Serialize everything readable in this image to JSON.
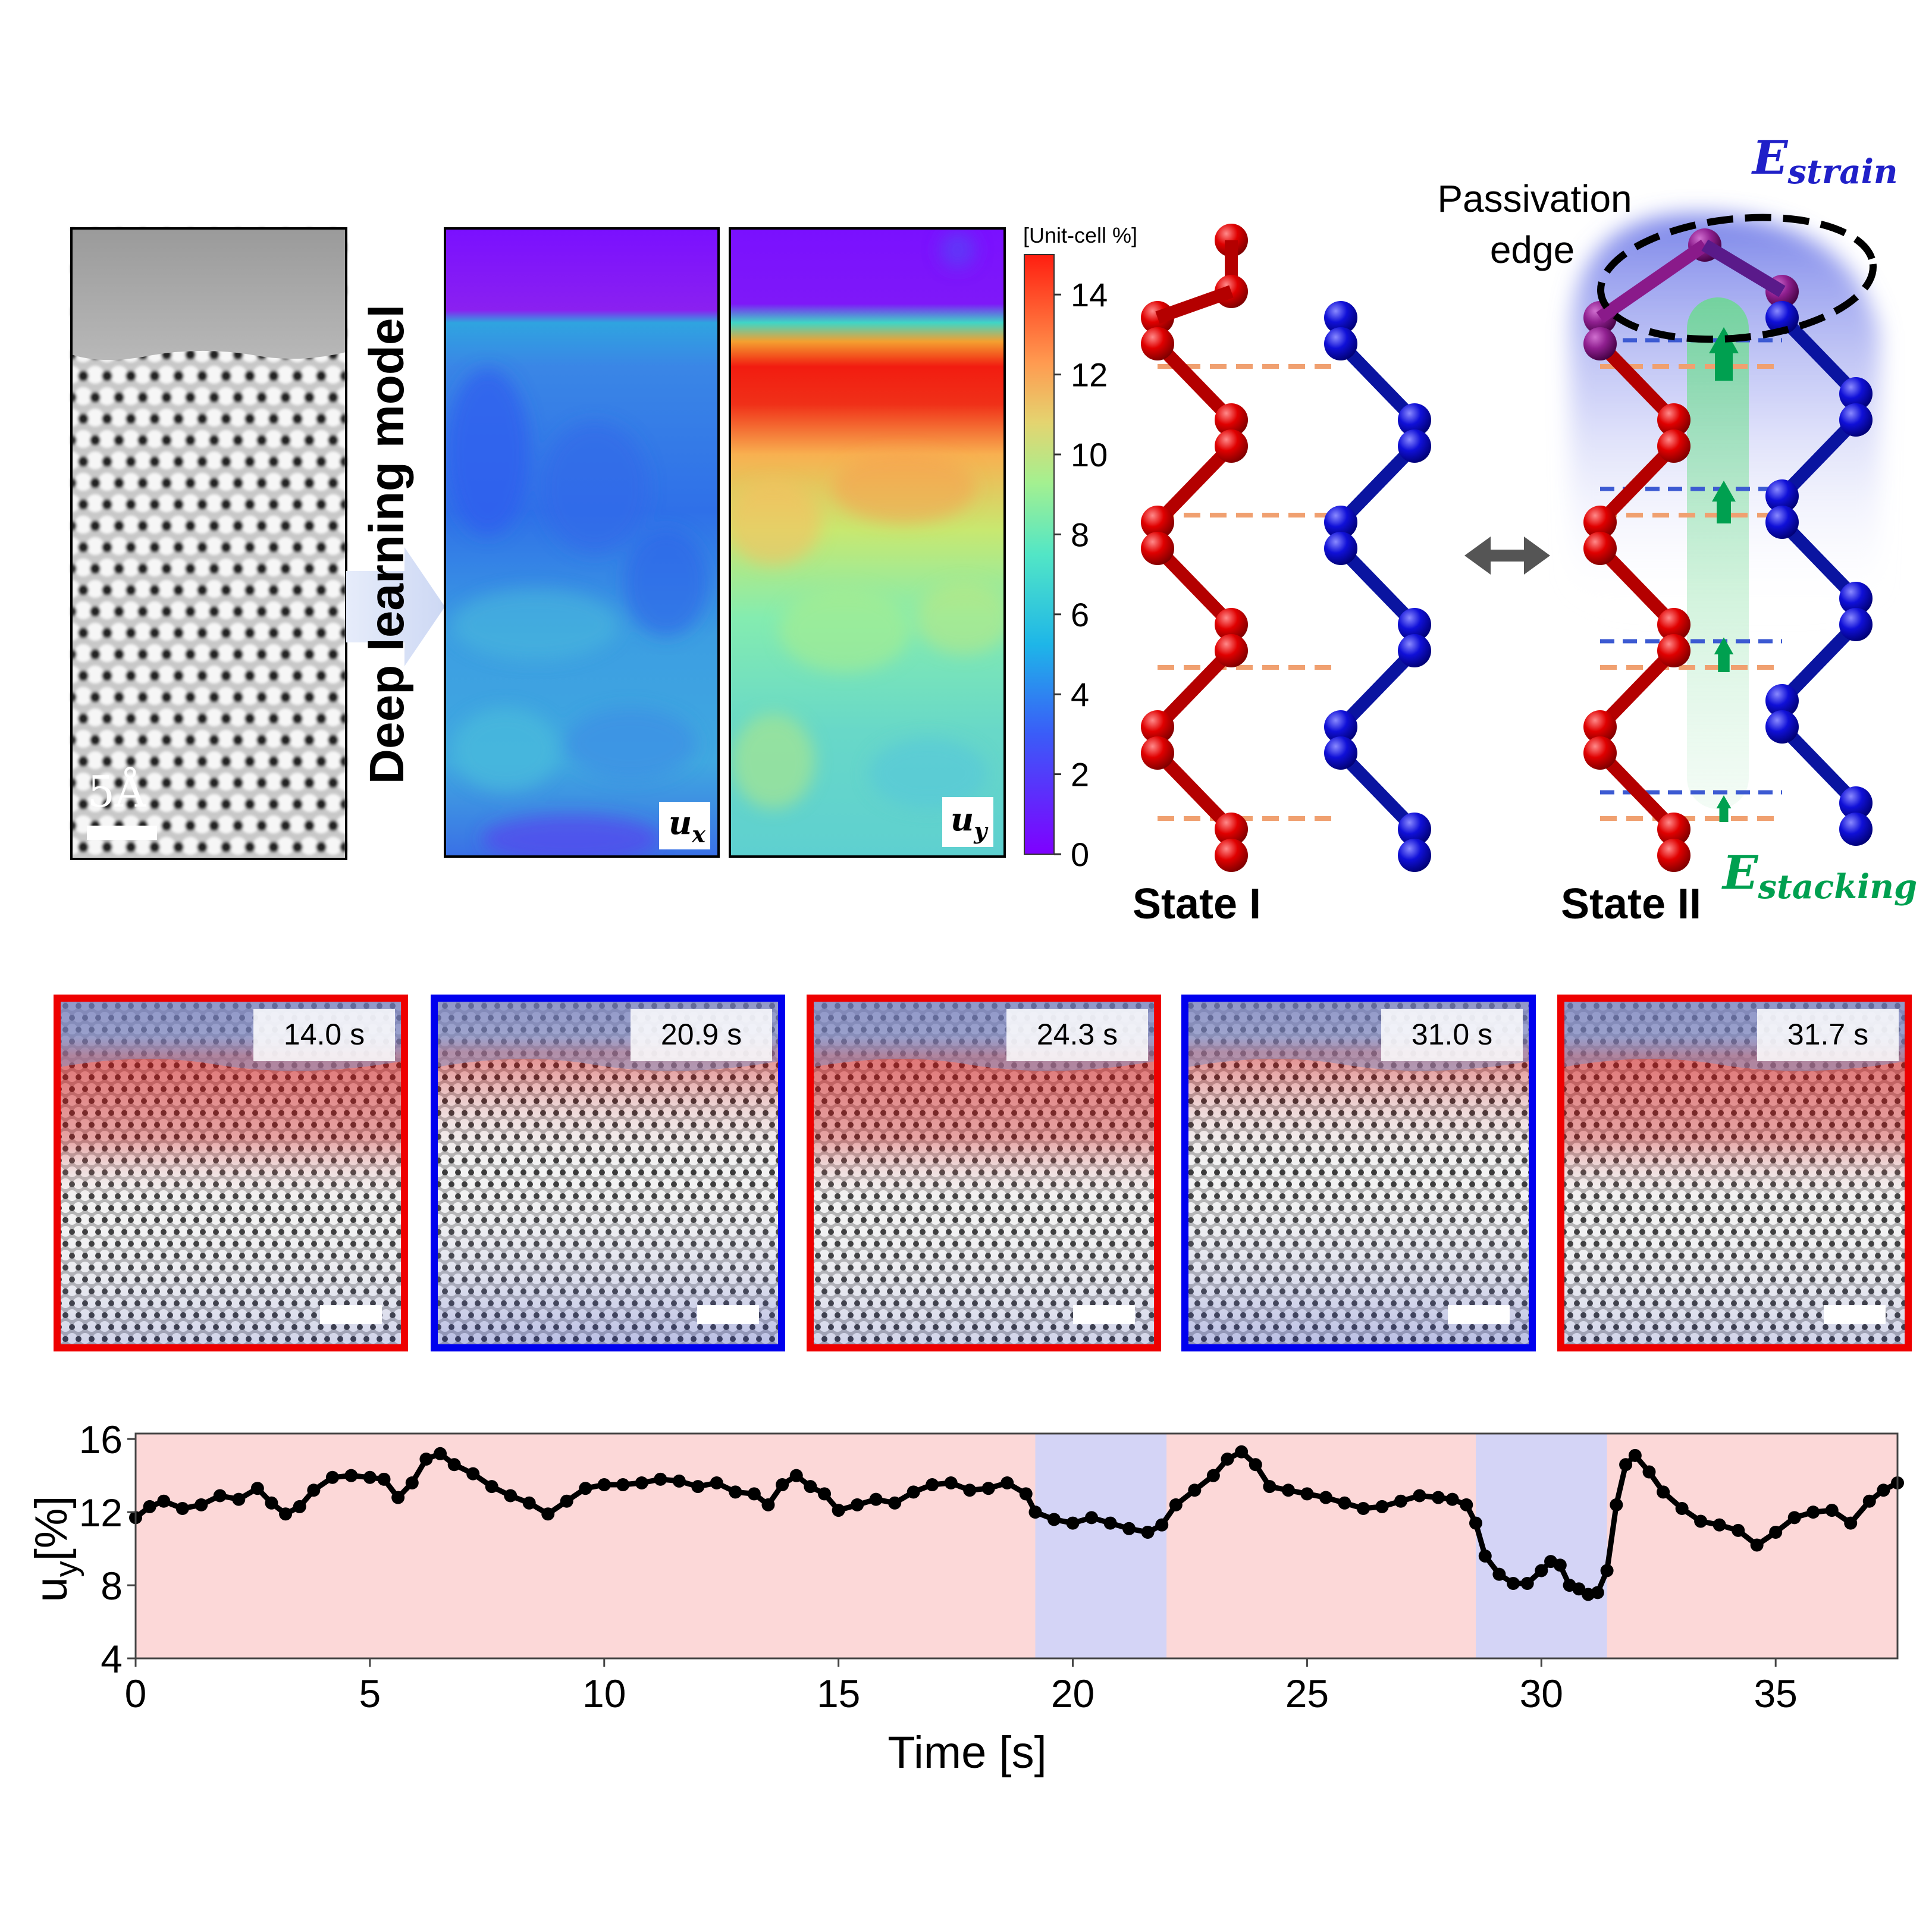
{
  "panel_a": {
    "scale_label": "5Å",
    "arrow_label": "Deep learning model",
    "map_ux_label": "u",
    "map_ux_sub": "x",
    "map_uy_label": "u",
    "map_uy_sub": "y",
    "colorbar": {
      "title": "[Unit-cell %]",
      "ticks": [
        "0",
        "2",
        "4",
        "6",
        "8",
        "10",
        "12",
        "14"
      ],
      "min": 0,
      "max": 15
    }
  },
  "panel_b": {
    "state1_label": "State I",
    "state2_label": "State II",
    "passivation_line1": "Passivation",
    "passivation_line2": "edge",
    "e_strain": "E",
    "e_strain_sub": "strain",
    "e_stacking": "E",
    "e_stacking_sub": "stacking",
    "colors": {
      "red_chain": "#cc0000",
      "blue_chain": "#0a14b8",
      "strain": "#2020c8",
      "stacking": "#00a050",
      "guide_orange": "#f0a070",
      "guide_blue": "#3c5ad2"
    }
  },
  "frames": [
    {
      "time": "14.0 s",
      "state": "red"
    },
    {
      "time": "20.9 s",
      "state": "blue"
    },
    {
      "time": "24.3 s",
      "state": "red"
    },
    {
      "time": "31.0 s",
      "state": "blue"
    },
    {
      "time": "31.7 s",
      "state": "red"
    }
  ],
  "chart_data": {
    "type": "line",
    "title": "",
    "xlabel": "Time [s]",
    "ylabel": "u",
    "ylabel_sub": "y",
    "ylabel_unit": "[%]",
    "xlim": [
      0,
      37.6
    ],
    "ylim": [
      4,
      16.3
    ],
    "xticks": [
      0,
      5,
      10,
      15,
      20,
      25,
      30,
      35
    ],
    "yticks": [
      4,
      8,
      12,
      16
    ],
    "background_state": "State I (red)",
    "state_bands": [
      {
        "x0": 19.2,
        "x1": 22.0,
        "state": "State II (blue)"
      },
      {
        "x0": 28.6,
        "x1": 31.4,
        "state": "State II (blue)"
      }
    ],
    "band_colors": {
      "red": "#fcd8d8",
      "blue": "#d4d4f6"
    },
    "series": [
      {
        "name": "u_y",
        "points": [
          [
            0.0,
            11.7
          ],
          [
            0.3,
            12.3
          ],
          [
            0.6,
            12.6
          ],
          [
            1.0,
            12.2
          ],
          [
            1.4,
            12.4
          ],
          [
            1.8,
            12.9
          ],
          [
            2.2,
            12.7
          ],
          [
            2.6,
            13.3
          ],
          [
            2.9,
            12.5
          ],
          [
            3.2,
            11.9
          ],
          [
            3.5,
            12.3
          ],
          [
            3.8,
            13.2
          ],
          [
            4.2,
            13.9
          ],
          [
            4.6,
            14.0
          ],
          [
            5.0,
            13.9
          ],
          [
            5.3,
            13.8
          ],
          [
            5.6,
            12.8
          ],
          [
            5.9,
            13.6
          ],
          [
            6.2,
            14.9
          ],
          [
            6.5,
            15.2
          ],
          [
            6.8,
            14.6
          ],
          [
            7.2,
            14.1
          ],
          [
            7.6,
            13.4
          ],
          [
            8.0,
            12.9
          ],
          [
            8.4,
            12.5
          ],
          [
            8.8,
            11.9
          ],
          [
            9.2,
            12.6
          ],
          [
            9.6,
            13.3
          ],
          [
            10.0,
            13.5
          ],
          [
            10.4,
            13.5
          ],
          [
            10.8,
            13.6
          ],
          [
            11.2,
            13.8
          ],
          [
            11.6,
            13.7
          ],
          [
            12.0,
            13.4
          ],
          [
            12.4,
            13.6
          ],
          [
            12.8,
            13.1
          ],
          [
            13.2,
            13.0
          ],
          [
            13.5,
            12.4
          ],
          [
            13.8,
            13.5
          ],
          [
            14.1,
            14.0
          ],
          [
            14.4,
            13.4
          ],
          [
            14.7,
            13.0
          ],
          [
            15.0,
            12.1
          ],
          [
            15.4,
            12.4
          ],
          [
            15.8,
            12.7
          ],
          [
            16.2,
            12.5
          ],
          [
            16.6,
            13.1
          ],
          [
            17.0,
            13.5
          ],
          [
            17.4,
            13.6
          ],
          [
            17.8,
            13.2
          ],
          [
            18.2,
            13.3
          ],
          [
            18.6,
            13.6
          ],
          [
            19.0,
            13.0
          ],
          [
            19.2,
            12.0
          ],
          [
            19.6,
            11.6
          ],
          [
            20.0,
            11.4
          ],
          [
            20.4,
            11.7
          ],
          [
            20.8,
            11.4
          ],
          [
            21.2,
            11.1
          ],
          [
            21.6,
            10.9
          ],
          [
            21.9,
            11.3
          ],
          [
            22.2,
            12.4
          ],
          [
            22.6,
            13.2
          ],
          [
            23.0,
            14.0
          ],
          [
            23.3,
            14.9
          ],
          [
            23.6,
            15.3
          ],
          [
            23.9,
            14.6
          ],
          [
            24.2,
            13.4
          ],
          [
            24.6,
            13.2
          ],
          [
            25.0,
            13.0
          ],
          [
            25.4,
            12.8
          ],
          [
            25.8,
            12.5
          ],
          [
            26.2,
            12.2
          ],
          [
            26.6,
            12.3
          ],
          [
            27.0,
            12.6
          ],
          [
            27.4,
            12.9
          ],
          [
            27.8,
            12.8
          ],
          [
            28.1,
            12.7
          ],
          [
            28.4,
            12.4
          ],
          [
            28.6,
            11.4
          ],
          [
            28.8,
            9.6
          ],
          [
            29.1,
            8.6
          ],
          [
            29.4,
            8.1
          ],
          [
            29.7,
            8.1
          ],
          [
            30.0,
            8.8
          ],
          [
            30.2,
            9.3
          ],
          [
            30.4,
            9.1
          ],
          [
            30.6,
            8.0
          ],
          [
            30.8,
            7.8
          ],
          [
            31.0,
            7.5
          ],
          [
            31.2,
            7.6
          ],
          [
            31.4,
            8.8
          ],
          [
            31.6,
            12.4
          ],
          [
            31.8,
            14.6
          ],
          [
            32.0,
            15.1
          ],
          [
            32.3,
            14.2
          ],
          [
            32.6,
            13.1
          ],
          [
            33.0,
            12.2
          ],
          [
            33.4,
            11.5
          ],
          [
            33.8,
            11.3
          ],
          [
            34.2,
            11.0
          ],
          [
            34.6,
            10.2
          ],
          [
            35.0,
            10.9
          ],
          [
            35.4,
            11.7
          ],
          [
            35.8,
            12.0
          ],
          [
            36.2,
            12.1
          ],
          [
            36.6,
            11.4
          ],
          [
            37.0,
            12.6
          ],
          [
            37.3,
            13.2
          ],
          [
            37.6,
            13.6
          ]
        ]
      }
    ]
  }
}
